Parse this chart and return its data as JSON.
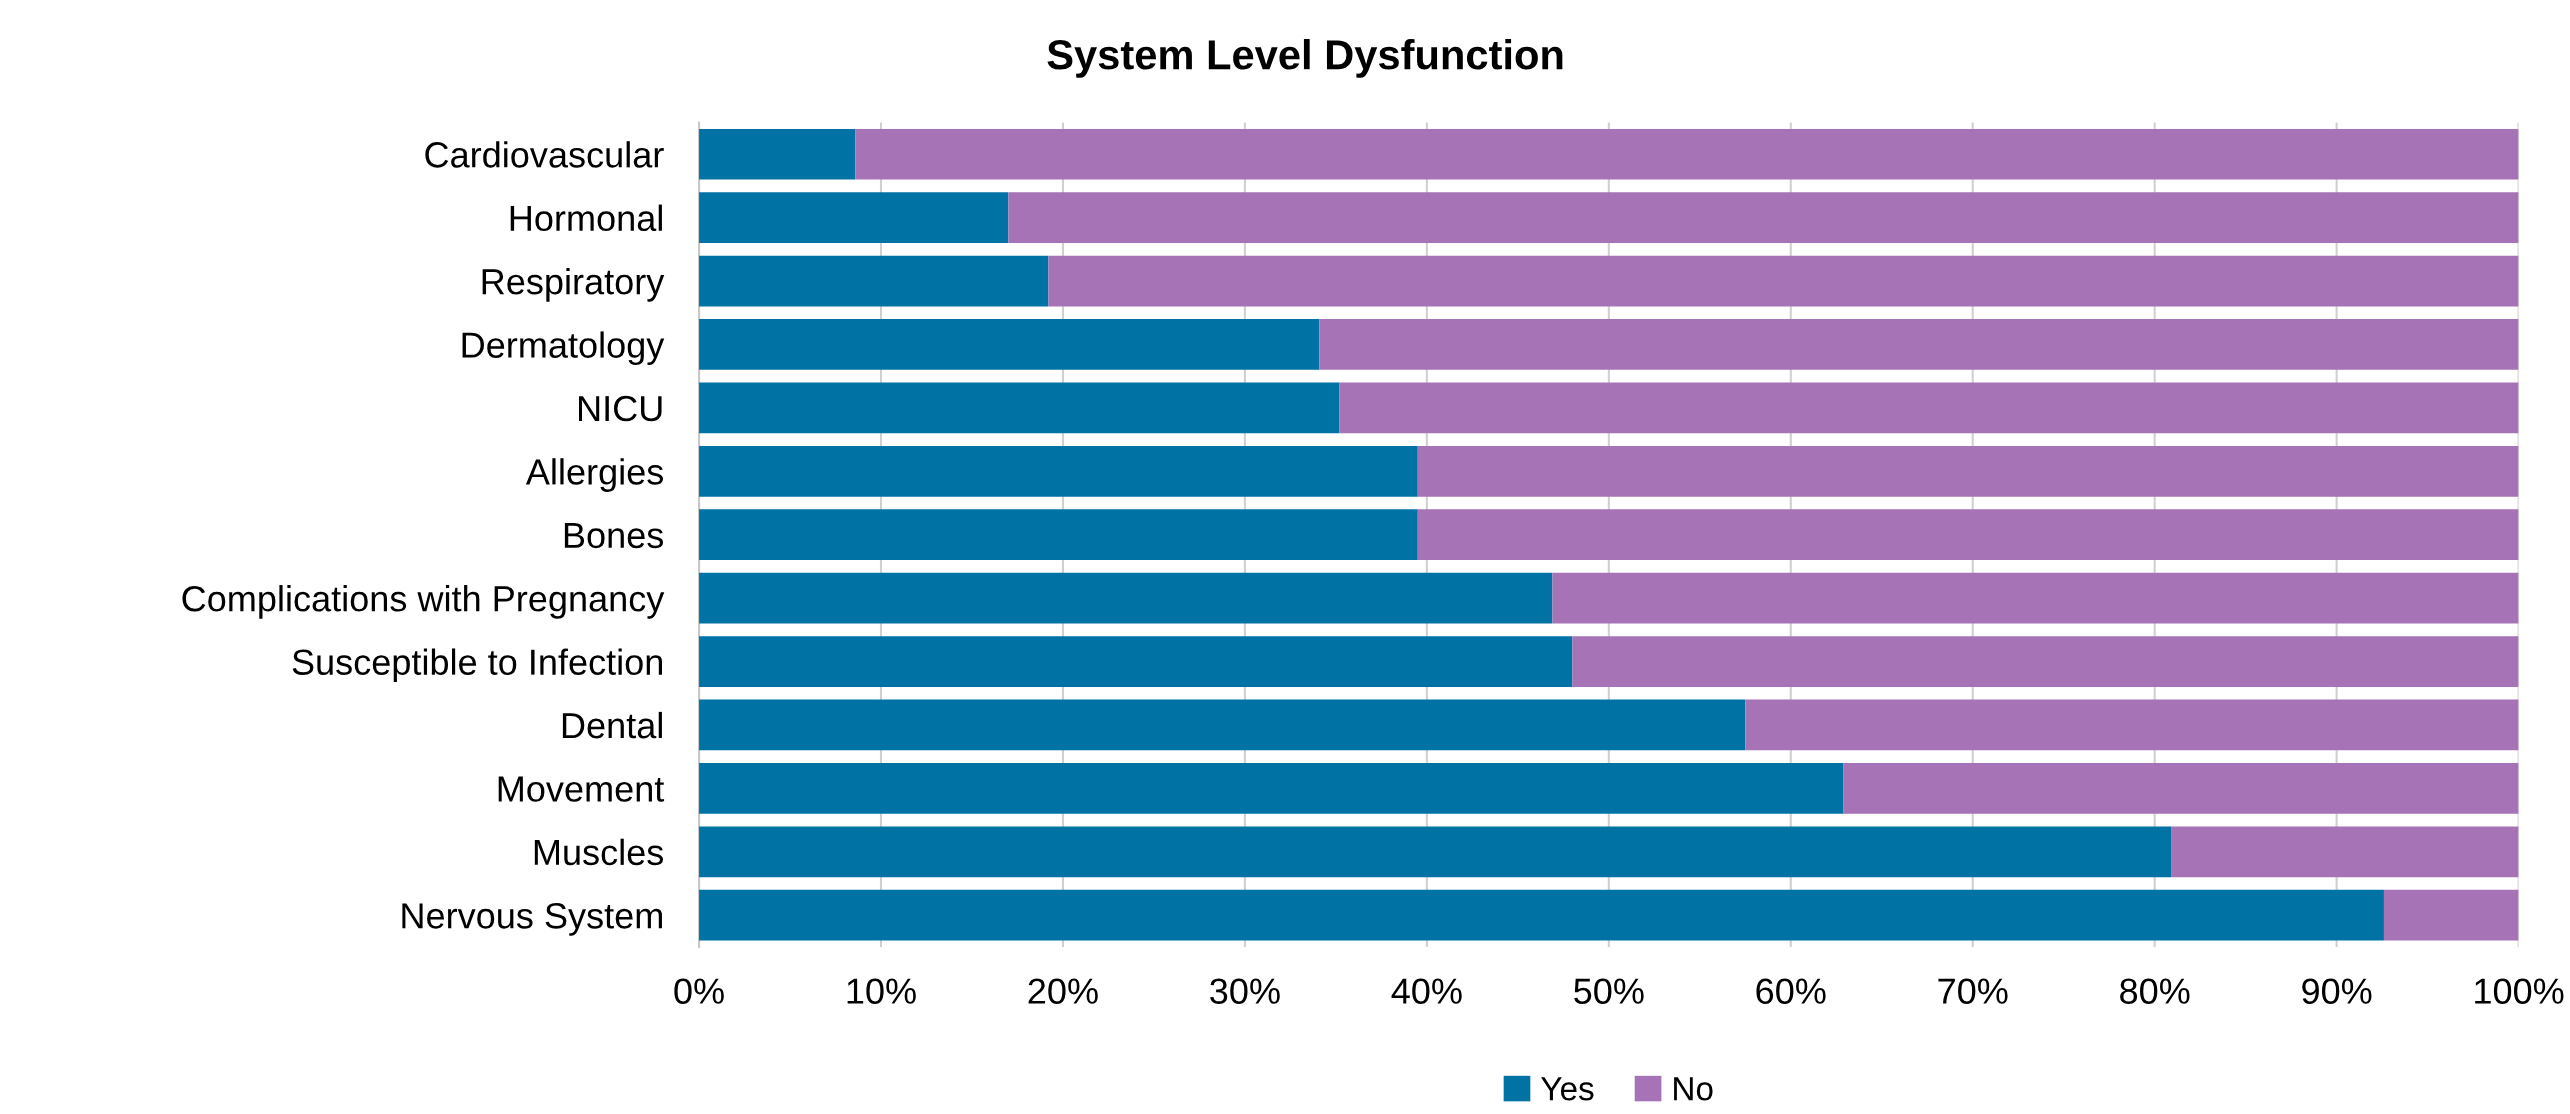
{
  "chart_data": {
    "type": "bar",
    "title": "System Level Dysfunction",
    "orientation": "horizontal",
    "stacked": true,
    "categories": [
      "Cardiovascular",
      "Hormonal",
      "Respiratory",
      "Dermatology",
      "NICU",
      "Allergies",
      "Bones",
      "Complications with Pregnancy",
      "Susceptible to Infection",
      "Dental",
      "Movement",
      "Muscles",
      "Nervous System"
    ],
    "series": [
      {
        "name": "Yes",
        "color": "#0073a4",
        "values": [
          8.6,
          17.0,
          19.2,
          34.1,
          35.2,
          39.5,
          39.5,
          46.9,
          48.0,
          57.5,
          62.9,
          80.9,
          92.6
        ]
      },
      {
        "name": "No",
        "color": "#a673b6",
        "values": [
          91.4,
          83.0,
          80.8,
          65.9,
          64.8,
          60.5,
          60.5,
          53.1,
          52.0,
          42.5,
          37.1,
          19.1,
          7.4
        ]
      }
    ],
    "xlim": [
      0,
      100
    ],
    "xticks": [
      {
        "value": 0,
        "label": "0%"
      },
      {
        "value": 10,
        "label": "10%"
      },
      {
        "value": 20,
        "label": "20%"
      },
      {
        "value": 30,
        "label": "30%"
      },
      {
        "value": 40,
        "label": "40%"
      },
      {
        "value": 50,
        "label": "50%"
      },
      {
        "value": 60,
        "label": "60%"
      },
      {
        "value": 70,
        "label": "70%"
      },
      {
        "value": 80,
        "label": "80%"
      },
      {
        "value": 90,
        "label": "90%"
      },
      {
        "value": 100,
        "label": "100%"
      }
    ],
    "grid": "x",
    "legend": "bottom"
  }
}
